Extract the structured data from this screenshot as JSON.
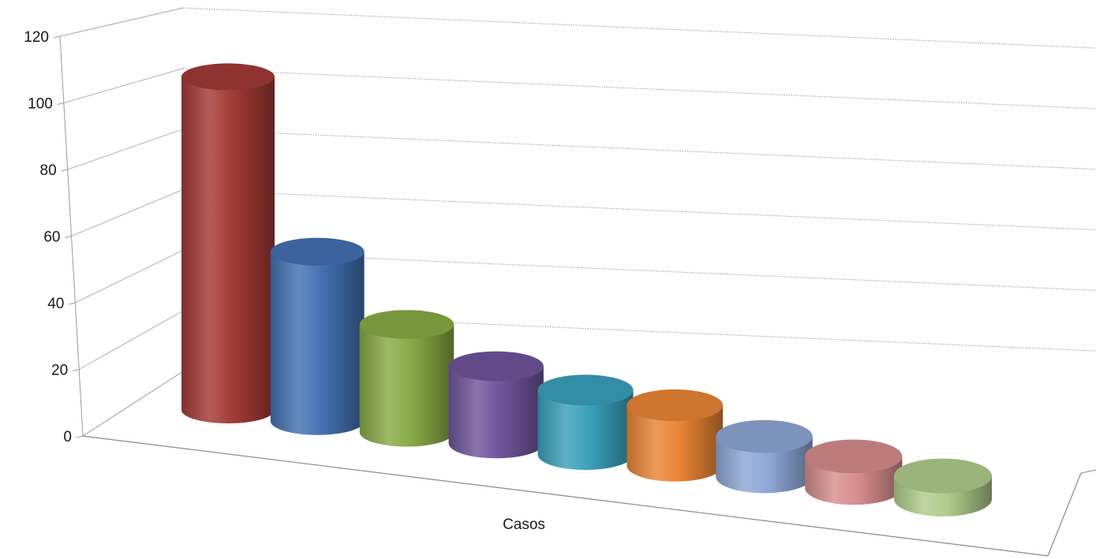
{
  "chart_data": {
    "type": "bar",
    "style": "3d-cylinder",
    "categories": [
      "Casos"
    ],
    "series": [
      {
        "values": [
          110
        ],
        "color": "#a33a36"
      },
      {
        "values": [
          57
        ],
        "color": "#4471b2"
      },
      {
        "values": [
          37
        ],
        "color": "#88aa45"
      },
      {
        "values": [
          27
        ],
        "color": "#6f549b"
      },
      {
        "values": [
          23
        ],
        "color": "#3aa0bb"
      },
      {
        "values": [
          22
        ],
        "color": "#e98534"
      },
      {
        "values": [
          15
        ],
        "color": "#8ea7d6"
      },
      {
        "values": [
          12
        ],
        "color": "#d68d8c"
      },
      {
        "values": [
          9
        ],
        "color": "#b0cc8c"
      }
    ],
    "title": "",
    "xlabel": "",
    "ylabel": "",
    "ylim": [
      0,
      120
    ],
    "yticks": [
      "0",
      "20",
      "40",
      "60",
      "80",
      "100",
      "120"
    ],
    "grid": true,
    "legend": "none"
  }
}
